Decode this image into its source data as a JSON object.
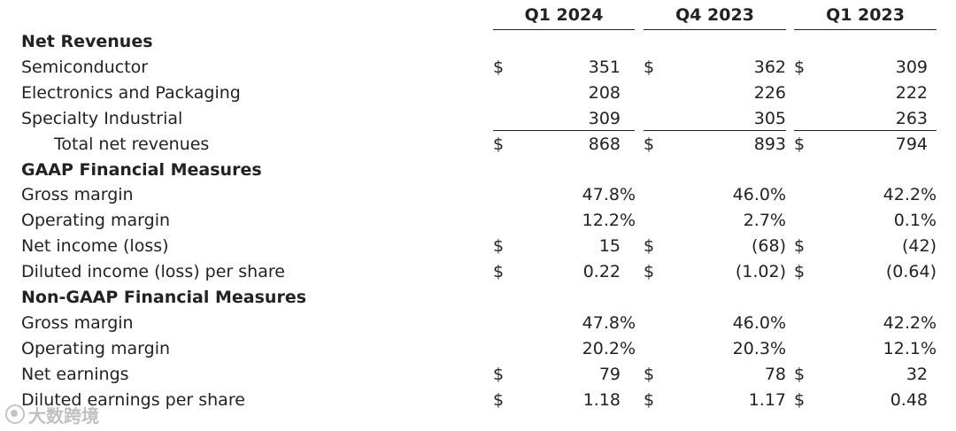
{
  "headers": [
    "Q1 2024",
    "Q4 2023",
    "Q1 2023"
  ],
  "currency_symbol": "$",
  "rows": [
    {
      "label": "Net Revenues",
      "type": "section",
      "values": [
        "",
        "",
        ""
      ],
      "currency": false
    },
    {
      "label": "Semiconductor",
      "type": "line",
      "values": [
        "351",
        "362",
        "309"
      ],
      "currency": true
    },
    {
      "label": "Electronics and Packaging",
      "type": "line",
      "values": [
        "208",
        "226",
        "222"
      ],
      "currency": false
    },
    {
      "label": "Specialty Industrial",
      "type": "line",
      "values": [
        "309",
        "305",
        "263"
      ],
      "currency": false
    },
    {
      "label": "Total net revenues",
      "type": "total",
      "values": [
        "868",
        "893",
        "794"
      ],
      "currency": true
    },
    {
      "label": "GAAP Financial Measures",
      "type": "section",
      "values": [
        "",
        "",
        ""
      ],
      "currency": false
    },
    {
      "label": "Gross margin",
      "type": "line",
      "values": [
        "47.8%",
        "46.0%",
        "42.2%"
      ],
      "currency": false
    },
    {
      "label": "Operating margin",
      "type": "line",
      "values": [
        "12.2%",
        "2.7%",
        "0.1%"
      ],
      "currency": false
    },
    {
      "label": "Net income (loss)",
      "type": "line",
      "values": [
        "15",
        "(68)",
        "(42)"
      ],
      "currency": true
    },
    {
      "label": "Diluted income (loss) per share",
      "type": "line",
      "values": [
        "0.22",
        "(1.02)",
        "(0.64)"
      ],
      "currency": true
    },
    {
      "label": "Non-GAAP Financial Measures",
      "type": "section",
      "values": [
        "",
        "",
        ""
      ],
      "currency": false
    },
    {
      "label": "Gross margin",
      "type": "line",
      "values": [
        "47.8%",
        "46.0%",
        "42.2%"
      ],
      "currency": false
    },
    {
      "label": "Operating margin",
      "type": "line",
      "values": [
        "20.2%",
        "20.3%",
        "12.1%"
      ],
      "currency": false
    },
    {
      "label": "Net earnings",
      "type": "line",
      "values": [
        "79",
        "78",
        "32"
      ],
      "currency": true
    },
    {
      "label": "Diluted earnings per share",
      "type": "line",
      "values": [
        "1.18",
        "1.17",
        "0.48"
      ],
      "currency": true
    }
  ],
  "watermark": "大数跨境"
}
